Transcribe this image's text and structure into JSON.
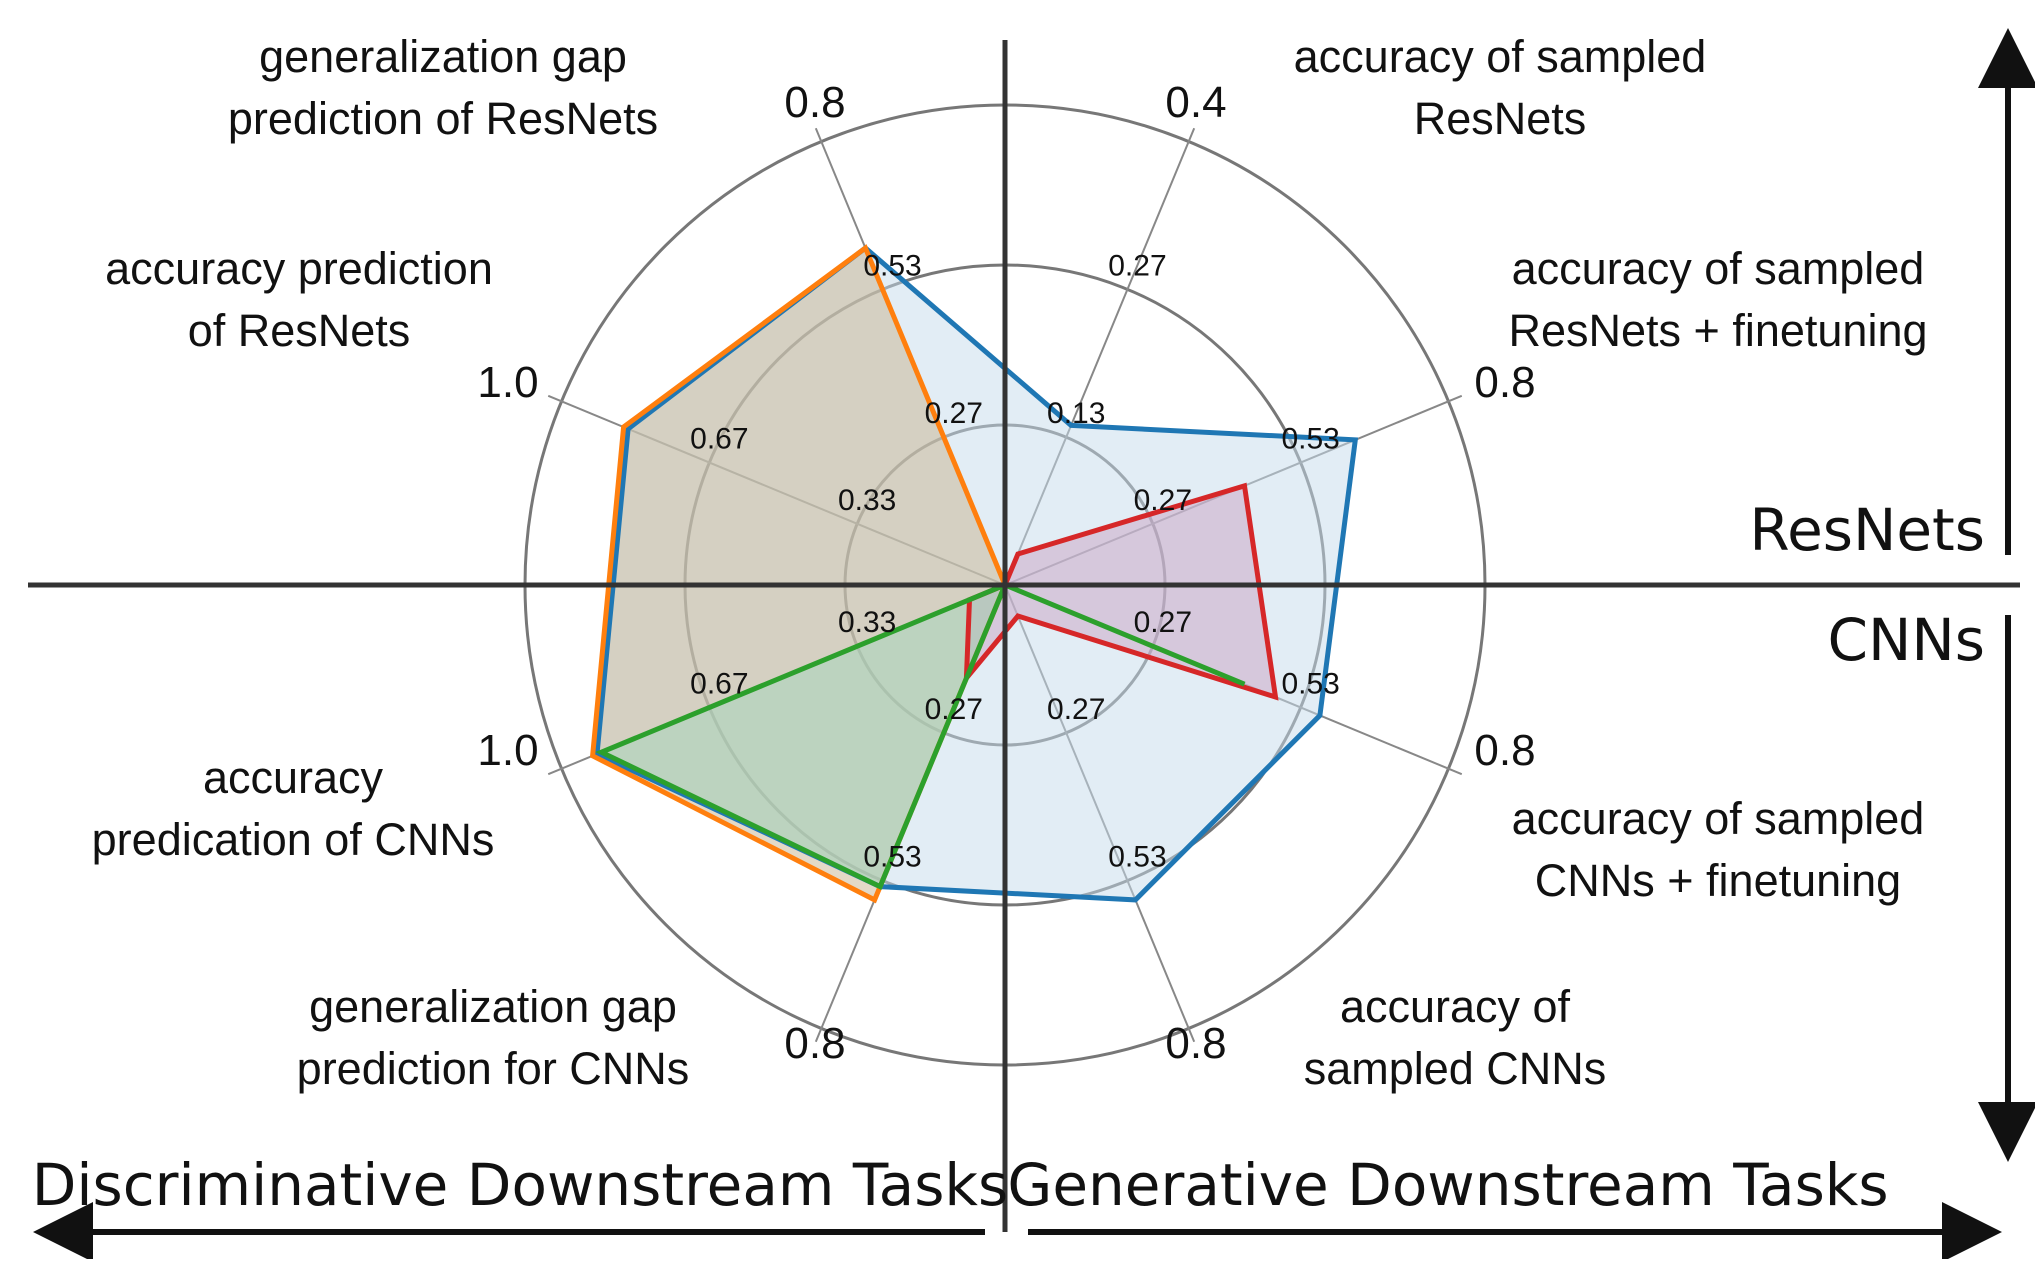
{
  "chart_data": {
    "type": "radar",
    "axes": [
      {
        "id": "acc-sampled-resnets",
        "label_lines": [
          "accuracy of sampled",
          "ResNets"
        ],
        "max_label": "0.4",
        "ticks": [
          "0.13",
          "0.27"
        ],
        "max": 0.4
      },
      {
        "id": "acc-sampled-resnets-ft",
        "label_lines": [
          "accuracy of sampled",
          "ResNets + finetuning"
        ],
        "max_label": "0.8",
        "ticks": [
          "0.27",
          "0.53"
        ],
        "max": 0.8
      },
      {
        "id": "acc-sampled-cnns-ft",
        "label_lines": [
          "accuracy of sampled",
          "CNNs + finetuning"
        ],
        "max_label": "0.8",
        "ticks": [
          "0.27",
          "0.53"
        ],
        "max": 0.8
      },
      {
        "id": "acc-sampled-cnns",
        "label_lines": [
          "accuracy of",
          "sampled CNNs"
        ],
        "max_label": "0.8",
        "ticks": [
          "0.27",
          "0.53"
        ],
        "max": 0.8
      },
      {
        "id": "gen-gap-cnns",
        "label_lines": [
          "generalization gap",
          "prediction for CNNs"
        ],
        "max_label": "0.8",
        "ticks": [
          "0.27",
          "0.53"
        ],
        "max": 0.8
      },
      {
        "id": "acc-pred-cnns",
        "label_lines": [
          "accuracy",
          "predication of CNNs"
        ],
        "max_label": "1.0",
        "ticks": [
          "0.33",
          "0.67"
        ],
        "max": 1.0
      },
      {
        "id": "acc-pred-resnets",
        "label_lines": [
          "accuracy prediction",
          "of ResNets"
        ],
        "max_label": "1.0",
        "ticks": [
          "0.33",
          "0.67"
        ],
        "max": 1.0
      },
      {
        "id": "gen-gap-resnets",
        "label_lines": [
          "generalization gap",
          "prediction of ResNets"
        ],
        "max_label": "0.8",
        "ticks": [
          "0.27",
          "0.53"
        ],
        "max": 0.8
      }
    ],
    "series": [
      {
        "color": "#1f77b4",
        "fill": "#c6dcec",
        "values": [
          0.36,
          0.79,
          0.71,
          0.71,
          0.68,
          0.92,
          0.85,
          0.76
        ]
      },
      {
        "color": "#ff7f0e",
        "fill": "#c8b48f",
        "values": [
          0.0,
          0.0,
          0.0,
          0.0,
          0.71,
          0.93,
          0.86,
          0.76
        ]
      },
      {
        "color": "#d62728",
        "fill": "#c9a3c4",
        "values": [
          0.07,
          0.54,
          0.61,
          0.07,
          0.21,
          0.08,
          0.0,
          0.0
        ]
      },
      {
        "color": "#2ca02c",
        "fill": "#a4d6bc",
        "values": [
          0.0,
          0.0,
          0.54,
          0.0,
          0.68,
          0.91,
          0.0,
          0.0
        ]
      }
    ],
    "rings": 3,
    "sections": {
      "top_right": "ResNets",
      "bottom_right": "CNNs",
      "bottom_left": "Discriminative Downstream Tasks",
      "bottom_right_task": "Generative Downstream Tasks"
    }
  }
}
